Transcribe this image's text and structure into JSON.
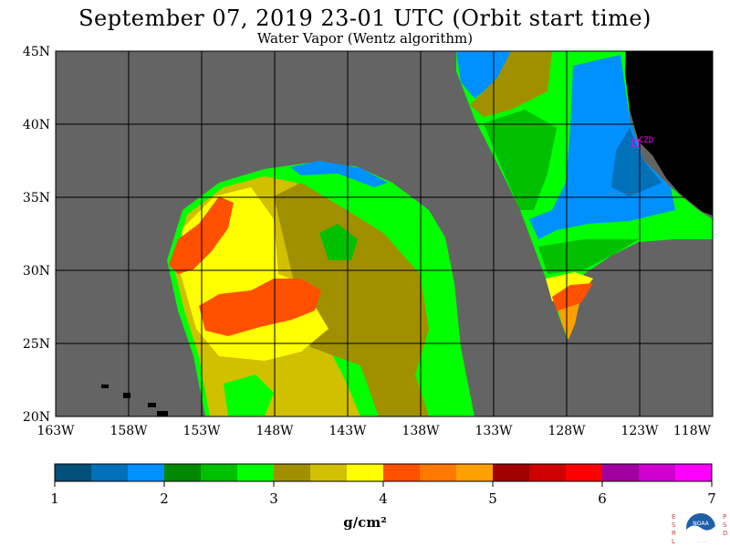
{
  "title": "September 07, 2019  23-01 UTC  (Orbit start time)",
  "subtitle": "Water Vapor (Wentz algorithm)",
  "map": {
    "lat_labels": [
      "45N",
      "40N",
      "35N",
      "30N",
      "25N",
      "20N"
    ],
    "lon_labels": [
      "163W",
      "158W",
      "153W",
      "148W",
      "143W",
      "138W",
      "133W",
      "128W",
      "123W",
      "118W"
    ],
    "station_label": "CZD",
    "colors": {
      "no_data": "#646464",
      "land": "#000000",
      "grid": "#000000",
      "station": "#ff00ff"
    }
  },
  "colorbar": {
    "ticks": [
      "1",
      "2",
      "3",
      "4",
      "5",
      "6",
      "7"
    ],
    "unit": "g/cm²",
    "colors": [
      "#00507a",
      "#0070b8",
      "#0090ff",
      "#008800",
      "#00c000",
      "#00ff00",
      "#a09000",
      "#d0c000",
      "#ffff00",
      "#ff5000",
      "#ff7800",
      "#ffa000",
      "#a00000",
      "#d00000",
      "#ff0000",
      "#a000a0",
      "#d000d0",
      "#ff00ff"
    ]
  },
  "logo": {
    "left_letters": "ESRL",
    "right_letters": "PSD",
    "name": "NOAA"
  }
}
